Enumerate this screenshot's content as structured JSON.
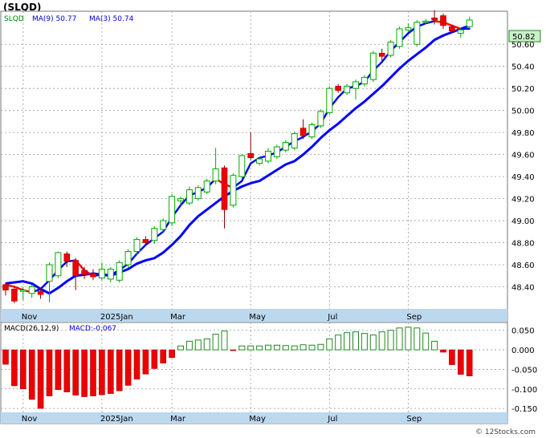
{
  "title": "(SLQD)",
  "watermark": "© 12Stocks.com",
  "legend": {
    "ticker": "SLQD",
    "ma9": "MA(9)  50.77",
    "ma3": "MA(3)  50.74"
  },
  "macd_legend": {
    "label": "MACD(26,12,9)",
    "value": "MACD:-0.067"
  },
  "last_price_label": "50.82",
  "colors": {
    "up": "#00aa00",
    "down": "#ee0000",
    "ma9": "#0000ff",
    "ma3_up": "#0000ff",
    "ma3_down": "#ff0000",
    "macd": "#228822",
    "date_band": "#bcd8ef",
    "price_box": "#c9f0c9"
  },
  "chart_data": {
    "type": "candlestick",
    "price_ylim": [
      48.2,
      50.9
    ],
    "price_ticks": [
      "48.40",
      "48.60",
      "48.80",
      "49.00",
      "49.20",
      "49.40",
      "49.60",
      "49.80",
      "50.00",
      "50.20",
      "50.40",
      "50.60"
    ],
    "macd_ylim": [
      -0.16,
      0.07
    ],
    "macd_ticks": [
      "0.050",
      "0.000",
      "-0.050",
      "-0.100",
      "-0.150"
    ],
    "x_labels": [
      "Nov",
      "2025Jan",
      "Mar",
      "May",
      "Jul",
      "Sep"
    ],
    "x_label_index": [
      2,
      11,
      19,
      28,
      37,
      46
    ],
    "candles": [
      [
        48.42,
        48.37,
        48.44,
        48.32
      ],
      [
        48.38,
        48.27,
        48.4,
        48.25
      ],
      [
        48.36,
        48.37,
        48.4,
        48.28
      ],
      [
        48.34,
        48.4,
        48.42,
        48.3
      ],
      [
        48.36,
        48.33,
        48.39,
        48.29
      ],
      [
        48.45,
        48.6,
        48.62,
        48.26
      ],
      [
        48.5,
        48.71,
        48.72,
        48.48
      ],
      [
        48.7,
        48.63,
        48.72,
        48.58
      ],
      [
        48.64,
        48.5,
        48.66,
        48.37
      ],
      [
        48.55,
        48.51,
        48.58,
        48.47
      ],
      [
        48.52,
        48.49,
        48.56,
        48.46
      ],
      [
        48.48,
        48.56,
        48.62,
        48.46
      ],
      [
        48.47,
        48.56,
        48.58,
        48.44
      ],
      [
        48.46,
        48.62,
        48.64,
        48.44
      ],
      [
        48.6,
        48.72,
        48.74,
        48.57
      ],
      [
        48.72,
        48.83,
        48.85,
        48.69
      ],
      [
        48.83,
        48.8,
        48.86,
        48.78
      ],
      [
        48.82,
        48.93,
        48.95,
        48.79
      ],
      [
        48.92,
        49.0,
        49.02,
        48.89
      ],
      [
        48.98,
        49.22,
        49.24,
        48.95
      ],
      [
        49.18,
        49.2,
        49.22,
        49.14
      ],
      [
        49.16,
        49.28,
        49.31,
        49.14
      ],
      [
        49.2,
        49.3,
        49.32,
        49.18
      ],
      [
        49.26,
        49.36,
        49.38,
        49.24
      ],
      [
        49.36,
        49.47,
        49.66,
        49.33
      ],
      [
        49.48,
        49.1,
        49.5,
        48.93
      ],
      [
        49.14,
        49.41,
        49.43,
        49.12
      ],
      [
        49.4,
        49.59,
        49.6,
        49.38
      ],
      [
        49.61,
        49.57,
        49.8,
        49.55
      ],
      [
        49.52,
        49.56,
        49.58,
        49.5
      ],
      [
        49.54,
        49.63,
        49.66,
        49.52
      ],
      [
        49.58,
        49.67,
        49.69,
        49.56
      ],
      [
        49.64,
        49.71,
        49.73,
        49.62
      ],
      [
        49.66,
        49.79,
        49.81,
        49.64
      ],
      [
        49.84,
        49.77,
        49.92,
        49.74
      ],
      [
        49.76,
        49.87,
        49.89,
        49.74
      ],
      [
        49.86,
        49.99,
        50.01,
        49.84
      ],
      [
        49.98,
        50.2,
        50.22,
        49.96
      ],
      [
        50.22,
        50.18,
        50.24,
        50.16
      ],
      [
        50.16,
        50.22,
        50.24,
        50.14
      ],
      [
        50.2,
        50.26,
        50.28,
        50.1
      ],
      [
        50.24,
        50.3,
        50.32,
        50.22
      ],
      [
        50.28,
        50.52,
        50.54,
        50.26
      ],
      [
        50.52,
        50.49,
        50.56,
        50.44
      ],
      [
        50.5,
        50.62,
        50.64,
        50.48
      ],
      [
        50.58,
        50.74,
        50.76,
        50.56
      ],
      [
        50.73,
        50.75,
        50.79,
        50.71
      ],
      [
        50.6,
        50.8,
        50.82,
        50.58
      ],
      [
        50.8,
        50.81,
        50.83,
        50.78
      ],
      [
        50.84,
        50.82,
        50.91,
        50.78
      ],
      [
        50.86,
        50.77,
        50.88,
        50.74
      ],
      [
        50.76,
        50.72,
        50.78,
        50.7
      ],
      [
        50.7,
        50.73,
        50.75,
        50.66
      ],
      [
        50.76,
        50.82,
        50.85,
        50.74
      ]
    ],
    "ma9": [
      48.43,
      48.44,
      48.45,
      48.43,
      48.38,
      48.34,
      48.39,
      48.45,
      48.5,
      48.51,
      48.52,
      48.51,
      48.5,
      48.53,
      48.56,
      48.61,
      48.64,
      48.66,
      48.71,
      48.78,
      48.86,
      48.96,
      49.04,
      49.1,
      49.16,
      49.22,
      49.27,
      49.31,
      49.34,
      49.36,
      49.41,
      49.46,
      49.51,
      49.54,
      49.6,
      49.67,
      49.75,
      49.82,
      49.88,
      49.95,
      50.02,
      50.08,
      50.15,
      50.22,
      50.3,
      50.38,
      50.45,
      50.51,
      50.57,
      50.64,
      50.68,
      50.71,
      50.74,
      50.77
    ],
    "ma3": [
      48.42,
      48.4,
      48.37,
      48.35,
      48.38,
      48.46,
      48.55,
      48.63,
      48.64,
      48.55,
      48.5,
      48.51,
      48.51,
      48.55,
      48.61,
      48.7,
      48.78,
      48.84,
      48.9,
      49.03,
      49.14,
      49.23,
      49.26,
      49.3,
      49.38,
      49.33,
      49.3,
      49.36,
      49.52,
      49.57,
      49.59,
      49.62,
      49.67,
      49.72,
      49.76,
      49.81,
      49.88,
      50.02,
      50.12,
      50.2,
      50.22,
      50.26,
      50.36,
      50.44,
      50.54,
      50.62,
      50.7,
      50.76,
      50.79,
      50.81,
      50.8,
      50.77,
      50.74,
      50.74
    ],
    "macd": [
      -0.037,
      -0.092,
      -0.1,
      -0.127,
      -0.15,
      -0.118,
      -0.102,
      -0.108,
      -0.116,
      -0.12,
      -0.118,
      -0.115,
      -0.112,
      -0.105,
      -0.091,
      -0.075,
      -0.062,
      -0.048,
      -0.034,
      -0.02,
      0.01,
      0.022,
      0.025,
      0.028,
      0.04,
      0.048,
      -0.002,
      0.01,
      0.01,
      0.01,
      0.012,
      0.012,
      0.011,
      0.01,
      0.013,
      0.012,
      0.014,
      0.028,
      0.038,
      0.044,
      0.046,
      0.042,
      0.038,
      0.046,
      0.05,
      0.056,
      0.058,
      0.056,
      0.043,
      0.022,
      -0.006,
      -0.038,
      -0.063,
      -0.067
    ]
  }
}
